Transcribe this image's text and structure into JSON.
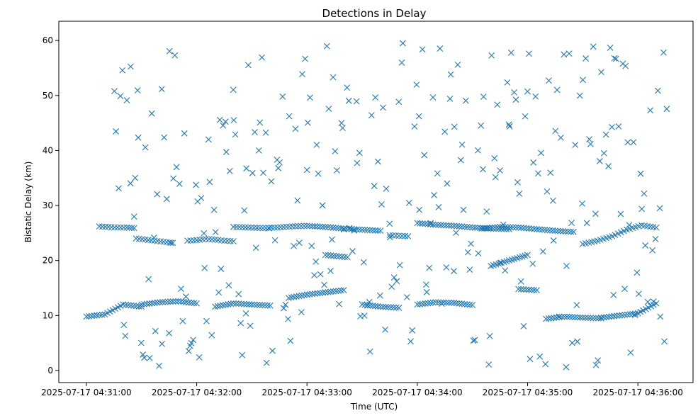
{
  "chart_data": {
    "type": "scatter",
    "title": "Detections in Delay",
    "xlabel": "Time (UTC)",
    "ylabel": "Bistatic Delay (km)",
    "x_ticks": [
      "2025-07-17 04:31:00",
      "2025-07-17 04:32:00",
      "2025-07-17 04:33:00",
      "2025-07-17 04:34:00",
      "2025-07-17 04:35:00",
      "2025-07-17 04:36:00"
    ],
    "y_ticks": [
      "0",
      "10",
      "20",
      "30",
      "40",
      "50",
      "60"
    ],
    "xlim": [
      "2025-07-17 04:30:45",
      "2025-07-17 04:36:30"
    ],
    "ylim": [
      -2.2,
      63.5
    ],
    "grid": false,
    "marker": "x",
    "color": "#1f77b4",
    "x_range": [
      "2025-07-17 04:31:15",
      "2025-07-17 04:36:15"
    ],
    "tracks": [
      {
        "x": [
          "04:31:07",
          "04:31:12",
          "04:31:17",
          "04:31:22",
          "04:31:26"
        ],
        "y": [
          26.2,
          26.1,
          26.0,
          26.0,
          25.9
        ]
      },
      {
        "x": [
          "04:31:27",
          "04:31:32",
          "04:31:37",
          "04:31:42",
          "04:31:47"
        ],
        "y": [
          24.0,
          23.8,
          23.6,
          23.4,
          23.2
        ]
      },
      {
        "x": [
          "04:31:55",
          "04:32:00",
          "04:32:05",
          "04:32:10",
          "04:32:15",
          "04:32:20"
        ],
        "y": [
          23.6,
          23.7,
          23.9,
          23.8,
          23.6,
          23.5
        ]
      },
      {
        "x": [
          "04:32:20",
          "04:32:28",
          "04:32:36",
          "04:32:44",
          "04:32:52",
          "04:33:00",
          "04:33:10",
          "04:33:20",
          "04:33:30",
          "04:33:40"
        ],
        "y": [
          26.1,
          26.0,
          25.9,
          26.0,
          26.2,
          26.3,
          26.1,
          25.8,
          25.6,
          25.4
        ]
      },
      {
        "x": [
          "04:33:10",
          "04:33:16",
          "04:33:22"
        ],
        "y": [
          21.0,
          20.8,
          20.6
        ]
      },
      {
        "x": [
          "04:33:45",
          "04:33:50",
          "04:33:55"
        ],
        "y": [
          24.6,
          24.5,
          24.4
        ]
      },
      {
        "x": [
          "04:34:00",
          "04:34:10",
          "04:34:20",
          "04:34:30",
          "04:34:40",
          "04:34:50"
        ],
        "y": [
          26.8,
          26.5,
          26.3,
          26.0,
          25.8,
          25.7
        ]
      },
      {
        "x": [
          "04:34:35",
          "04:34:45",
          "04:34:55",
          "04:35:05",
          "04:35:15",
          "04:35:25"
        ],
        "y": [
          25.8,
          26.1,
          26.0,
          25.7,
          25.4,
          25.2
        ]
      },
      {
        "x": [
          "04:34:40",
          "04:34:50",
          "04:35:00"
        ],
        "y": [
          19.0,
          20.0,
          21.0
        ]
      },
      {
        "x": [
          "04:35:30",
          "04:35:38",
          "04:35:46",
          "04:35:54",
          "04:36:02",
          "04:36:10"
        ],
        "y": [
          23.0,
          23.6,
          24.4,
          25.6,
          26.4,
          26.0
        ]
      },
      {
        "x": [
          "04:31:00",
          "04:31:10",
          "04:31:20",
          "04:31:30"
        ],
        "y": [
          9.8,
          10.2,
          12.0,
          11.6
        ]
      },
      {
        "x": [
          "04:31:30",
          "04:31:40",
          "04:31:50",
          "04:32:00"
        ],
        "y": [
          12.0,
          12.4,
          12.6,
          12.2
        ]
      },
      {
        "x": [
          "04:32:10",
          "04:32:20",
          "04:32:30",
          "04:32:40"
        ],
        "y": [
          11.6,
          12.2,
          12.0,
          11.8
        ]
      },
      {
        "x": [
          "04:32:50",
          "04:33:00",
          "04:33:10",
          "04:33:20"
        ],
        "y": [
          13.2,
          13.8,
          14.2,
          14.6
        ]
      },
      {
        "x": [
          "04:33:30",
          "04:33:40",
          "04:33:50"
        ],
        "y": [
          12.0,
          11.6,
          11.4
        ]
      },
      {
        "x": [
          "04:34:00",
          "04:34:10",
          "04:34:20",
          "04:34:30"
        ],
        "y": [
          12.0,
          12.4,
          12.3,
          11.9
        ]
      },
      {
        "x": [
          "04:34:55",
          "04:35:05"
        ],
        "y": [
          14.8,
          14.6
        ]
      },
      {
        "x": [
          "04:35:10",
          "04:35:20",
          "04:35:30",
          "04:35:40"
        ],
        "y": [
          9.4,
          9.8,
          9.6,
          9.5
        ]
      },
      {
        "x": [
          "04:35:40",
          "04:35:50",
          "04:36:00",
          "04:36:10"
        ],
        "y": [
          9.6,
          10.0,
          10.4,
          12.2
        ]
      }
    ],
    "scatter_density": 0.54,
    "seed": 17
  }
}
